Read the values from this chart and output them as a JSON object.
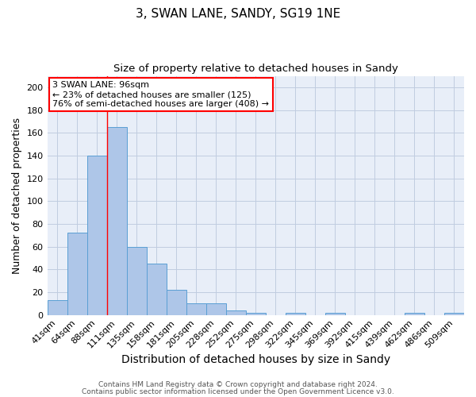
{
  "title1": "3, SWAN LANE, SANDY, SG19 1NE",
  "title2": "Size of property relative to detached houses in Sandy",
  "xlabel": "Distribution of detached houses by size in Sandy",
  "ylabel": "Number of detached properties",
  "footer1": "Contains HM Land Registry data © Crown copyright and database right 2024.",
  "footer2": "Contains public sector information licensed under the Open Government Licence v3.0.",
  "categories": [
    "41sqm",
    "64sqm",
    "88sqm",
    "111sqm",
    "135sqm",
    "158sqm",
    "181sqm",
    "205sqm",
    "228sqm",
    "252sqm",
    "275sqm",
    "298sqm",
    "322sqm",
    "345sqm",
    "369sqm",
    "392sqm",
    "415sqm",
    "439sqm",
    "462sqm",
    "486sqm",
    "509sqm"
  ],
  "values": [
    13,
    72,
    140,
    165,
    60,
    45,
    22,
    10,
    10,
    4,
    2,
    0,
    2,
    0,
    2,
    0,
    0,
    0,
    2,
    0,
    2
  ],
  "bar_color": "#aec6e8",
  "bar_edge_color": "#5a9fd4",
  "background_color": "#e8eef8",
  "grid_color": "#c0cce0",
  "annotation_line1": "3 SWAN LANE: 96sqm",
  "annotation_line2": "← 23% of detached houses are smaller (125)",
  "annotation_line3": "76% of semi-detached houses are larger (408) →",
  "annotation_box_color": "white",
  "annotation_box_edge": "red",
  "red_line_index": 2,
  "ylim": [
    0,
    210
  ],
  "yticks": [
    0,
    20,
    40,
    60,
    80,
    100,
    120,
    140,
    160,
    180,
    200
  ],
  "title1_fontsize": 11,
  "title2_fontsize": 9.5,
  "xlabel_fontsize": 10,
  "ylabel_fontsize": 9,
  "tick_fontsize": 8,
  "annotation_fontsize": 8,
  "footer_fontsize": 6.5
}
